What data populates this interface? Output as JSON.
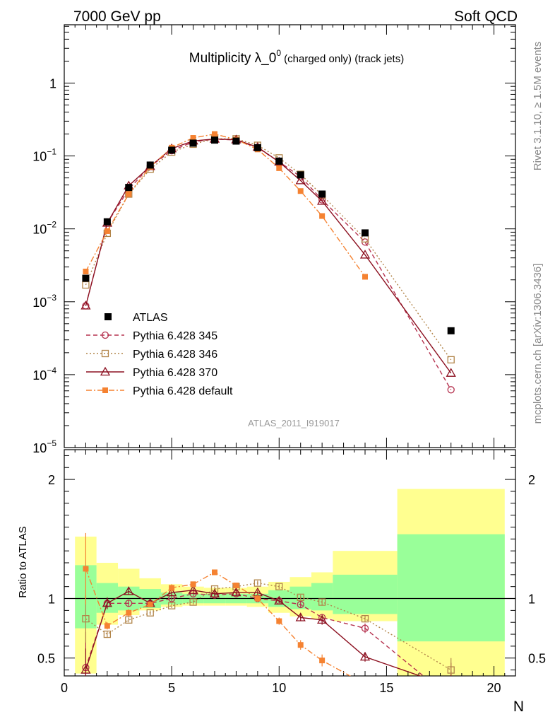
{
  "header": {
    "left": "7000 GeV pp",
    "right": "Soft QCD",
    "side_top": "Rivet 3.1.10, ≥ 1.5M events",
    "side_bottom": "mcplots.cern.ch [arXiv:1306.3436]"
  },
  "chart_data": {
    "type": "scatter",
    "title_main": "Multiplicity λ_0",
    "title_sup": "0",
    "title_sub": " (charged only) (track jets)",
    "analysis_label": "ATLAS_2011_I919017",
    "xlabel": "N",
    "ylabel_ratio": "Ratio to ATLAS",
    "xlim": [
      0,
      21
    ],
    "ylim_main_log10": [
      -5,
      0.8
    ],
    "ylim_ratio": [
      0.35,
      2.25
    ],
    "yscale_main": "log",
    "x_tick_labels": [
      "0",
      "5",
      "10",
      "15",
      "20"
    ],
    "y_tick_labels_main": [
      {
        "base": "1",
        "exp": ""
      },
      {
        "base": "10",
        "exp": "−1"
      },
      {
        "base": "10",
        "exp": "−2"
      },
      {
        "base": "10",
        "exp": "−3"
      },
      {
        "base": "10",
        "exp": "−4"
      },
      {
        "base": "10",
        "exp": "−5"
      }
    ],
    "y_tick_labels_ratio": [
      "0.5",
      "1",
      "2"
    ],
    "legend_placement": "lower-left",
    "x": [
      1,
      2,
      3,
      4,
      5,
      6,
      7,
      8,
      9,
      10,
      11,
      12,
      14,
      18
    ],
    "data_band_edges": [
      0.5,
      1.5,
      2.5,
      3.5,
      4.5,
      5.5,
      6.5,
      7.5,
      8.5,
      9.5,
      10.5,
      11.5,
      12.5,
      15.5,
      20.5
    ],
    "data": {
      "name": "ATLAS",
      "color": "#000000",
      "values": [
        0.0021,
        0.0125,
        0.037,
        0.075,
        0.12,
        0.15,
        0.165,
        0.16,
        0.13,
        0.085,
        0.055,
        0.03,
        0.0088,
        0.0004
      ]
    },
    "band_stat_green": [
      [
        0.75,
        1.28
      ],
      [
        0.88,
        1.13
      ],
      [
        0.9,
        1.1
      ],
      [
        0.92,
        1.08
      ],
      [
        0.95,
        1.05
      ],
      [
        0.96,
        1.04
      ],
      [
        0.96,
        1.04
      ],
      [
        0.96,
        1.04
      ],
      [
        0.96,
        1.04
      ],
      [
        0.93,
        1.07
      ],
      [
        0.91,
        1.1
      ],
      [
        0.9,
        1.13
      ],
      [
        0.87,
        1.2
      ],
      [
        0.64,
        1.54
      ]
    ],
    "band_total_yellow": [
      [
        0.37,
        1.52
      ],
      [
        0.78,
        1.3
      ],
      [
        0.86,
        1.25
      ],
      [
        0.9,
        1.17
      ],
      [
        0.93,
        1.12
      ],
      [
        0.94,
        1.1
      ],
      [
        0.94,
        1.09
      ],
      [
        0.94,
        1.09
      ],
      [
        0.93,
        1.1
      ],
      [
        0.88,
        1.14
      ],
      [
        0.85,
        1.18
      ],
      [
        0.83,
        1.22
      ],
      [
        0.81,
        1.4
      ],
      [
        0.35,
        1.92
      ]
    ],
    "series": [
      {
        "name": "Pythia 6.428 345",
        "color": "#b5324f",
        "marker": "circle-open",
        "dash": "6,4",
        "values": [
          0.00088,
          0.012,
          0.035,
          0.072,
          0.118,
          0.156,
          0.17,
          0.166,
          0.13,
          0.083,
          0.052,
          0.025,
          0.0066,
          6.2e-05
        ],
        "ratio": [
          0.42,
          0.96,
          0.96,
          0.96,
          1.0,
          1.04,
          1.03,
          1.04,
          1.0,
          0.98,
          0.95,
          0.84,
          0.75,
          0.16
        ],
        "ratio_err": [
          0.3,
          0.04,
          0.03,
          0.03,
          0.02,
          0.02,
          0.02,
          0.02,
          0.02,
          0.02,
          0.03,
          0.03,
          0.04,
          0.3
        ]
      },
      {
        "name": "Pythia 6.428 346",
        "color": "#b2854a",
        "marker": "square-open",
        "dash": "2,3",
        "values": [
          0.0017,
          0.0087,
          0.03,
          0.066,
          0.113,
          0.145,
          0.172,
          0.172,
          0.14,
          0.094,
          0.056,
          0.029,
          0.0073,
          0.00016
        ],
        "ratio": [
          0.83,
          0.7,
          0.82,
          0.88,
          0.94,
          0.97,
          1.08,
          1.1,
          1.13,
          1.1,
          1.01,
          0.97,
          0.83,
          0.4
        ],
        "ratio_err": [
          0.2,
          0.03,
          0.02,
          0.02,
          0.02,
          0.02,
          0.02,
          0.02,
          0.02,
          0.02,
          0.02,
          0.03,
          0.03,
          0.1
        ]
      },
      {
        "name": "Pythia 6.428 370",
        "color": "#8c1020",
        "marker": "triangle-open",
        "dash": "",
        "values": [
          0.00088,
          0.012,
          0.039,
          0.072,
          0.126,
          0.161,
          0.171,
          0.167,
          0.132,
          0.083,
          0.046,
          0.024,
          0.0044,
          0.000105
        ],
        "ratio": [
          0.4,
          0.96,
          1.06,
          0.96,
          1.05,
          1.07,
          1.04,
          1.05,
          1.05,
          0.98,
          0.84,
          0.82,
          0.51,
          0.26
        ],
        "ratio_err": [
          0.18,
          0.05,
          0.03,
          0.03,
          0.03,
          0.02,
          0.02,
          0.02,
          0.02,
          0.02,
          0.03,
          0.04,
          0.04,
          0.1
        ]
      },
      {
        "name": "Pythia 6.428 default",
        "color": "#f58231",
        "marker": "square-filled",
        "dash": "8,3,2,3",
        "values": [
          0.0026,
          0.0093,
          0.03,
          0.071,
          0.13,
          0.177,
          0.2,
          0.168,
          0.123,
          0.068,
          0.033,
          0.015,
          0.0022,
          0.0
        ],
        "ratio": [
          1.25,
          0.77,
          0.88,
          0.95,
          1.09,
          1.12,
          1.22,
          1.11,
          1.0,
          0.81,
          0.61,
          0.48,
          0.28,
          null
        ],
        "ratio_err": [
          0.3,
          0.03,
          0.03,
          0.02,
          0.03,
          0.02,
          0.02,
          0.02,
          0.03,
          0.03,
          0.04,
          0.05,
          0.05,
          0
        ]
      }
    ]
  }
}
